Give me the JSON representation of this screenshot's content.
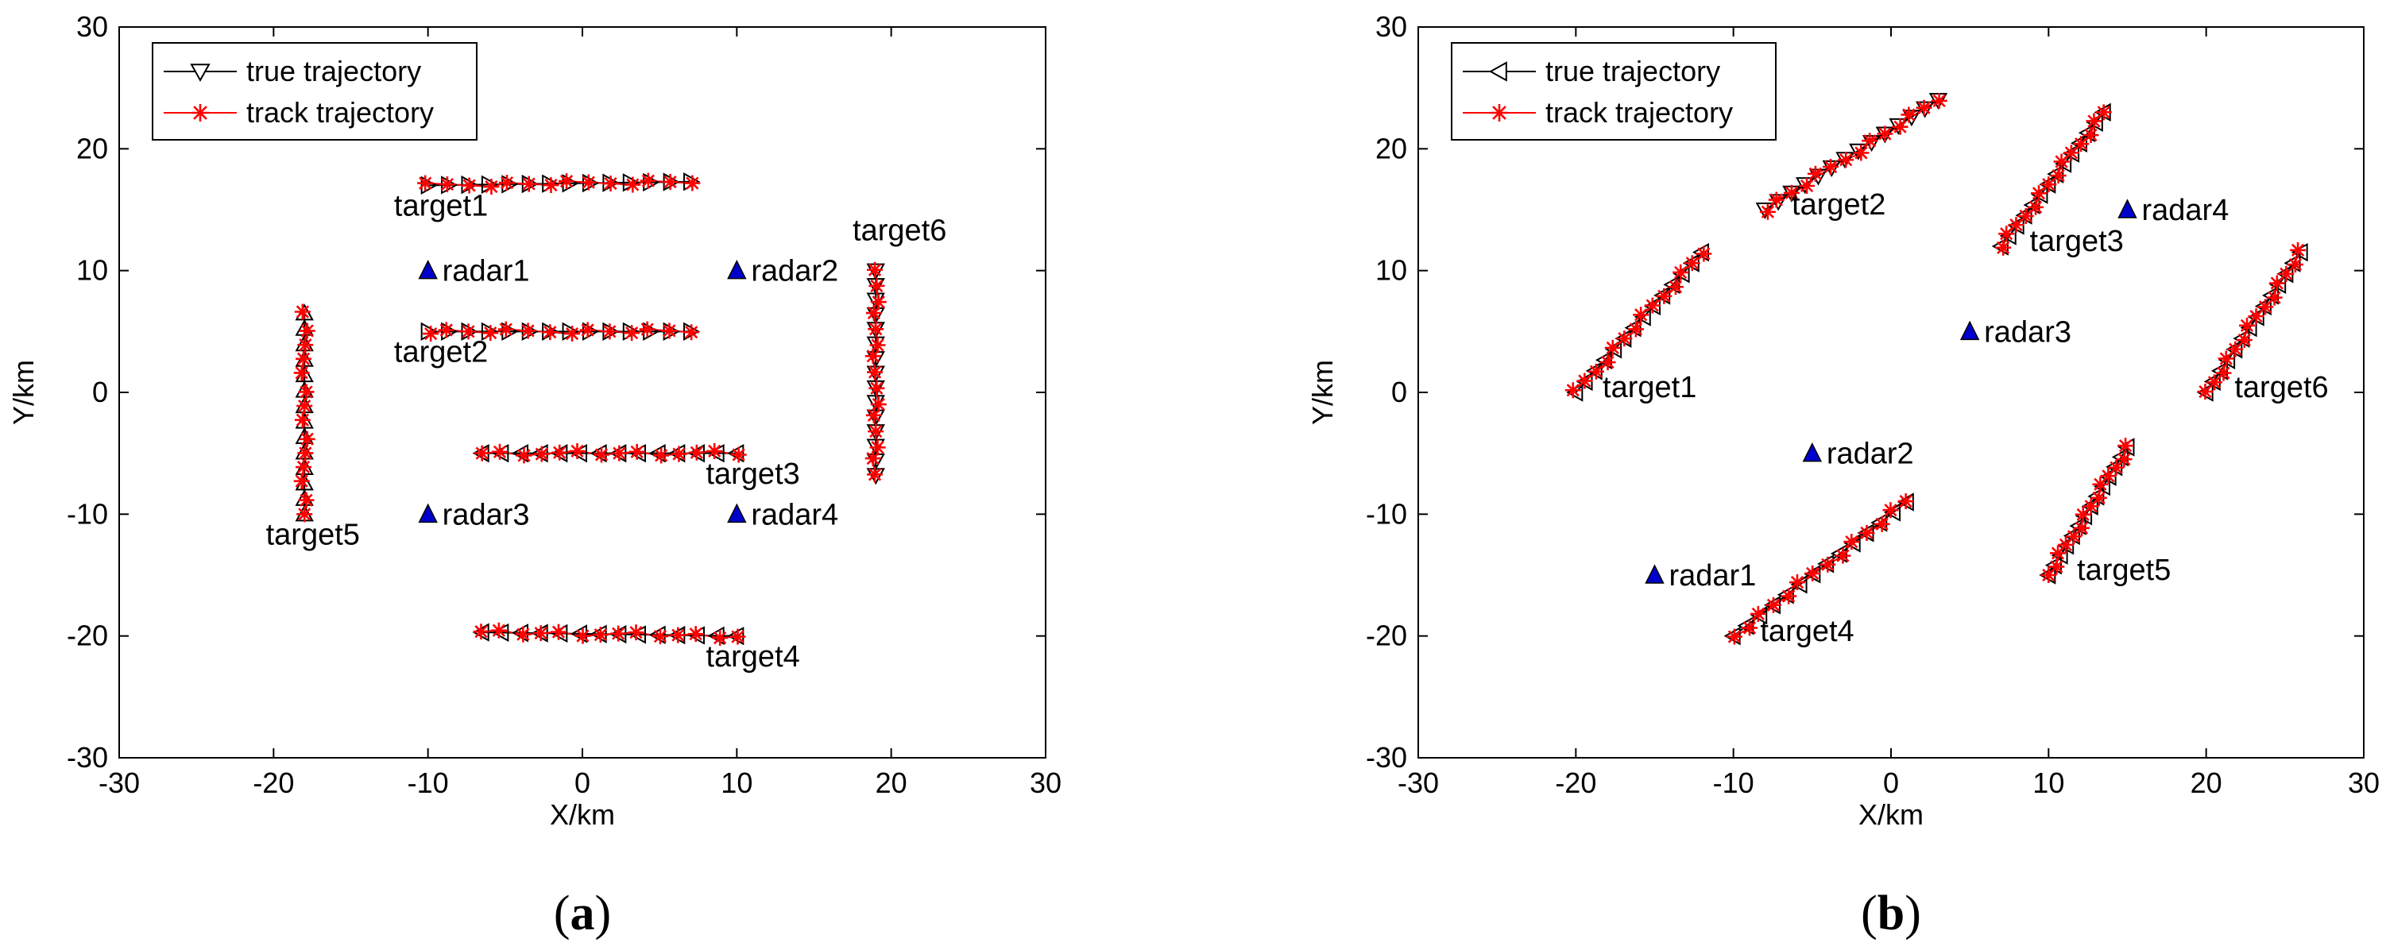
{
  "chart_data": [
    {
      "type": "line",
      "caption": "a",
      "xlabel": "X/km",
      "ylabel": "Y/km",
      "xlim": [
        -30,
        30
      ],
      "ylim": [
        -30,
        30
      ],
      "xticks": [
        -30,
        -20,
        -10,
        0,
        10,
        20,
        30
      ],
      "yticks": [
        -30,
        -20,
        -10,
        0,
        10,
        20,
        30
      ],
      "grid": false,
      "legend_position": "top-left",
      "legend": {
        "true_label": "true trajectory",
        "track_label": "track trajectory"
      },
      "true_marker": "triangle-down",
      "colors": {
        "true": "#000000",
        "track": "#ff0000",
        "radar": "#0000cc"
      },
      "radars": [
        {
          "label": "radar1",
          "x": -10,
          "y": 10
        },
        {
          "label": "radar2",
          "x": 10,
          "y": 10
        },
        {
          "label": "radar3",
          "x": -10,
          "y": -10
        },
        {
          "label": "radar4",
          "x": 10,
          "y": -10
        }
      ],
      "targets": [
        {
          "label": "target1",
          "start": [
            -10,
            17
          ],
          "end": [
            7,
            17.3
          ],
          "n": 14,
          "marker": "triangle-right",
          "label_at": [
            -12.2,
            14.5
          ]
        },
        {
          "label": "target2",
          "start": [
            -10,
            5
          ],
          "end": [
            7,
            5
          ],
          "n": 14,
          "marker": "triangle-right",
          "label_at": [
            -12.2,
            2.5
          ]
        },
        {
          "label": "target3",
          "start": [
            10,
            -5
          ],
          "end": [
            -6.5,
            -5
          ],
          "n": 14,
          "marker": "triangle-left",
          "label_at": [
            8,
            -7.5
          ]
        },
        {
          "label": "target4",
          "start": [
            10,
            -20
          ],
          "end": [
            -6.5,
            -19.7
          ],
          "n": 14,
          "marker": "triangle-left",
          "label_at": [
            8,
            -22.5
          ]
        },
        {
          "label": "target5",
          "start": [
            -18,
            -10
          ],
          "end": [
            -18,
            6.5
          ],
          "n": 14,
          "marker": "triangle-up",
          "label_at": [
            -20.5,
            -12.5
          ]
        },
        {
          "label": "target6",
          "start": [
            19,
            10
          ],
          "end": [
            19,
            -6.8
          ],
          "n": 15,
          "marker": "triangle-down",
          "label_at": [
            17.5,
            12.5
          ]
        }
      ]
    },
    {
      "type": "line",
      "caption": "b",
      "xlabel": "X/km",
      "ylabel": "Y/km",
      "xlim": [
        -30,
        30
      ],
      "ylim": [
        -30,
        30
      ],
      "xticks": [
        -30,
        -20,
        -10,
        0,
        10,
        20,
        30
      ],
      "yticks": [
        -30,
        -20,
        -10,
        0,
        10,
        20,
        30
      ],
      "grid": false,
      "legend_position": "top-left",
      "legend": {
        "true_label": "true trajectory",
        "track_label": "track trajectory"
      },
      "true_marker": "triangle-left",
      "colors": {
        "true": "#000000",
        "track": "#ff0000",
        "radar": "#0000cc"
      },
      "radars": [
        {
          "label": "radar1",
          "x": -15,
          "y": -15
        },
        {
          "label": "radar2",
          "x": -5,
          "y": -5
        },
        {
          "label": "radar3",
          "x": 5,
          "y": 5
        },
        {
          "label": "radar4",
          "x": 15,
          "y": 15
        }
      ],
      "targets": [
        {
          "label": "target1",
          "start": [
            -20,
            0
          ],
          "end": [
            -12,
            11.5
          ],
          "n": 14,
          "marker": "triangle-left",
          "label_at": [
            -18.3,
            -0.4
          ]
        },
        {
          "label": "target2",
          "start": [
            -8,
            15
          ],
          "end": [
            3,
            24
          ],
          "n": 14,
          "marker": "triangle-down",
          "label_at": [
            -6.3,
            14.6
          ]
        },
        {
          "label": "target3",
          "start": [
            7,
            12
          ],
          "end": [
            13.5,
            23
          ],
          "n": 14,
          "marker": "triangle-left",
          "label_at": [
            8.8,
            11.6
          ]
        },
        {
          "label": "target4",
          "start": [
            -10,
            -20
          ],
          "end": [
            1,
            -9
          ],
          "n": 14,
          "marker": "triangle-left",
          "label_at": [
            -8.3,
            -20.4
          ]
        },
        {
          "label": "target5",
          "start": [
            10,
            -15
          ],
          "end": [
            15,
            -4.5
          ],
          "n": 14,
          "marker": "triangle-left",
          "label_at": [
            11.8,
            -15.4
          ]
        },
        {
          "label": "target6",
          "start": [
            20,
            0
          ],
          "end": [
            26,
            11.5
          ],
          "n": 14,
          "marker": "triangle-left",
          "label_at": [
            21.8,
            -0.4
          ]
        }
      ]
    }
  ]
}
